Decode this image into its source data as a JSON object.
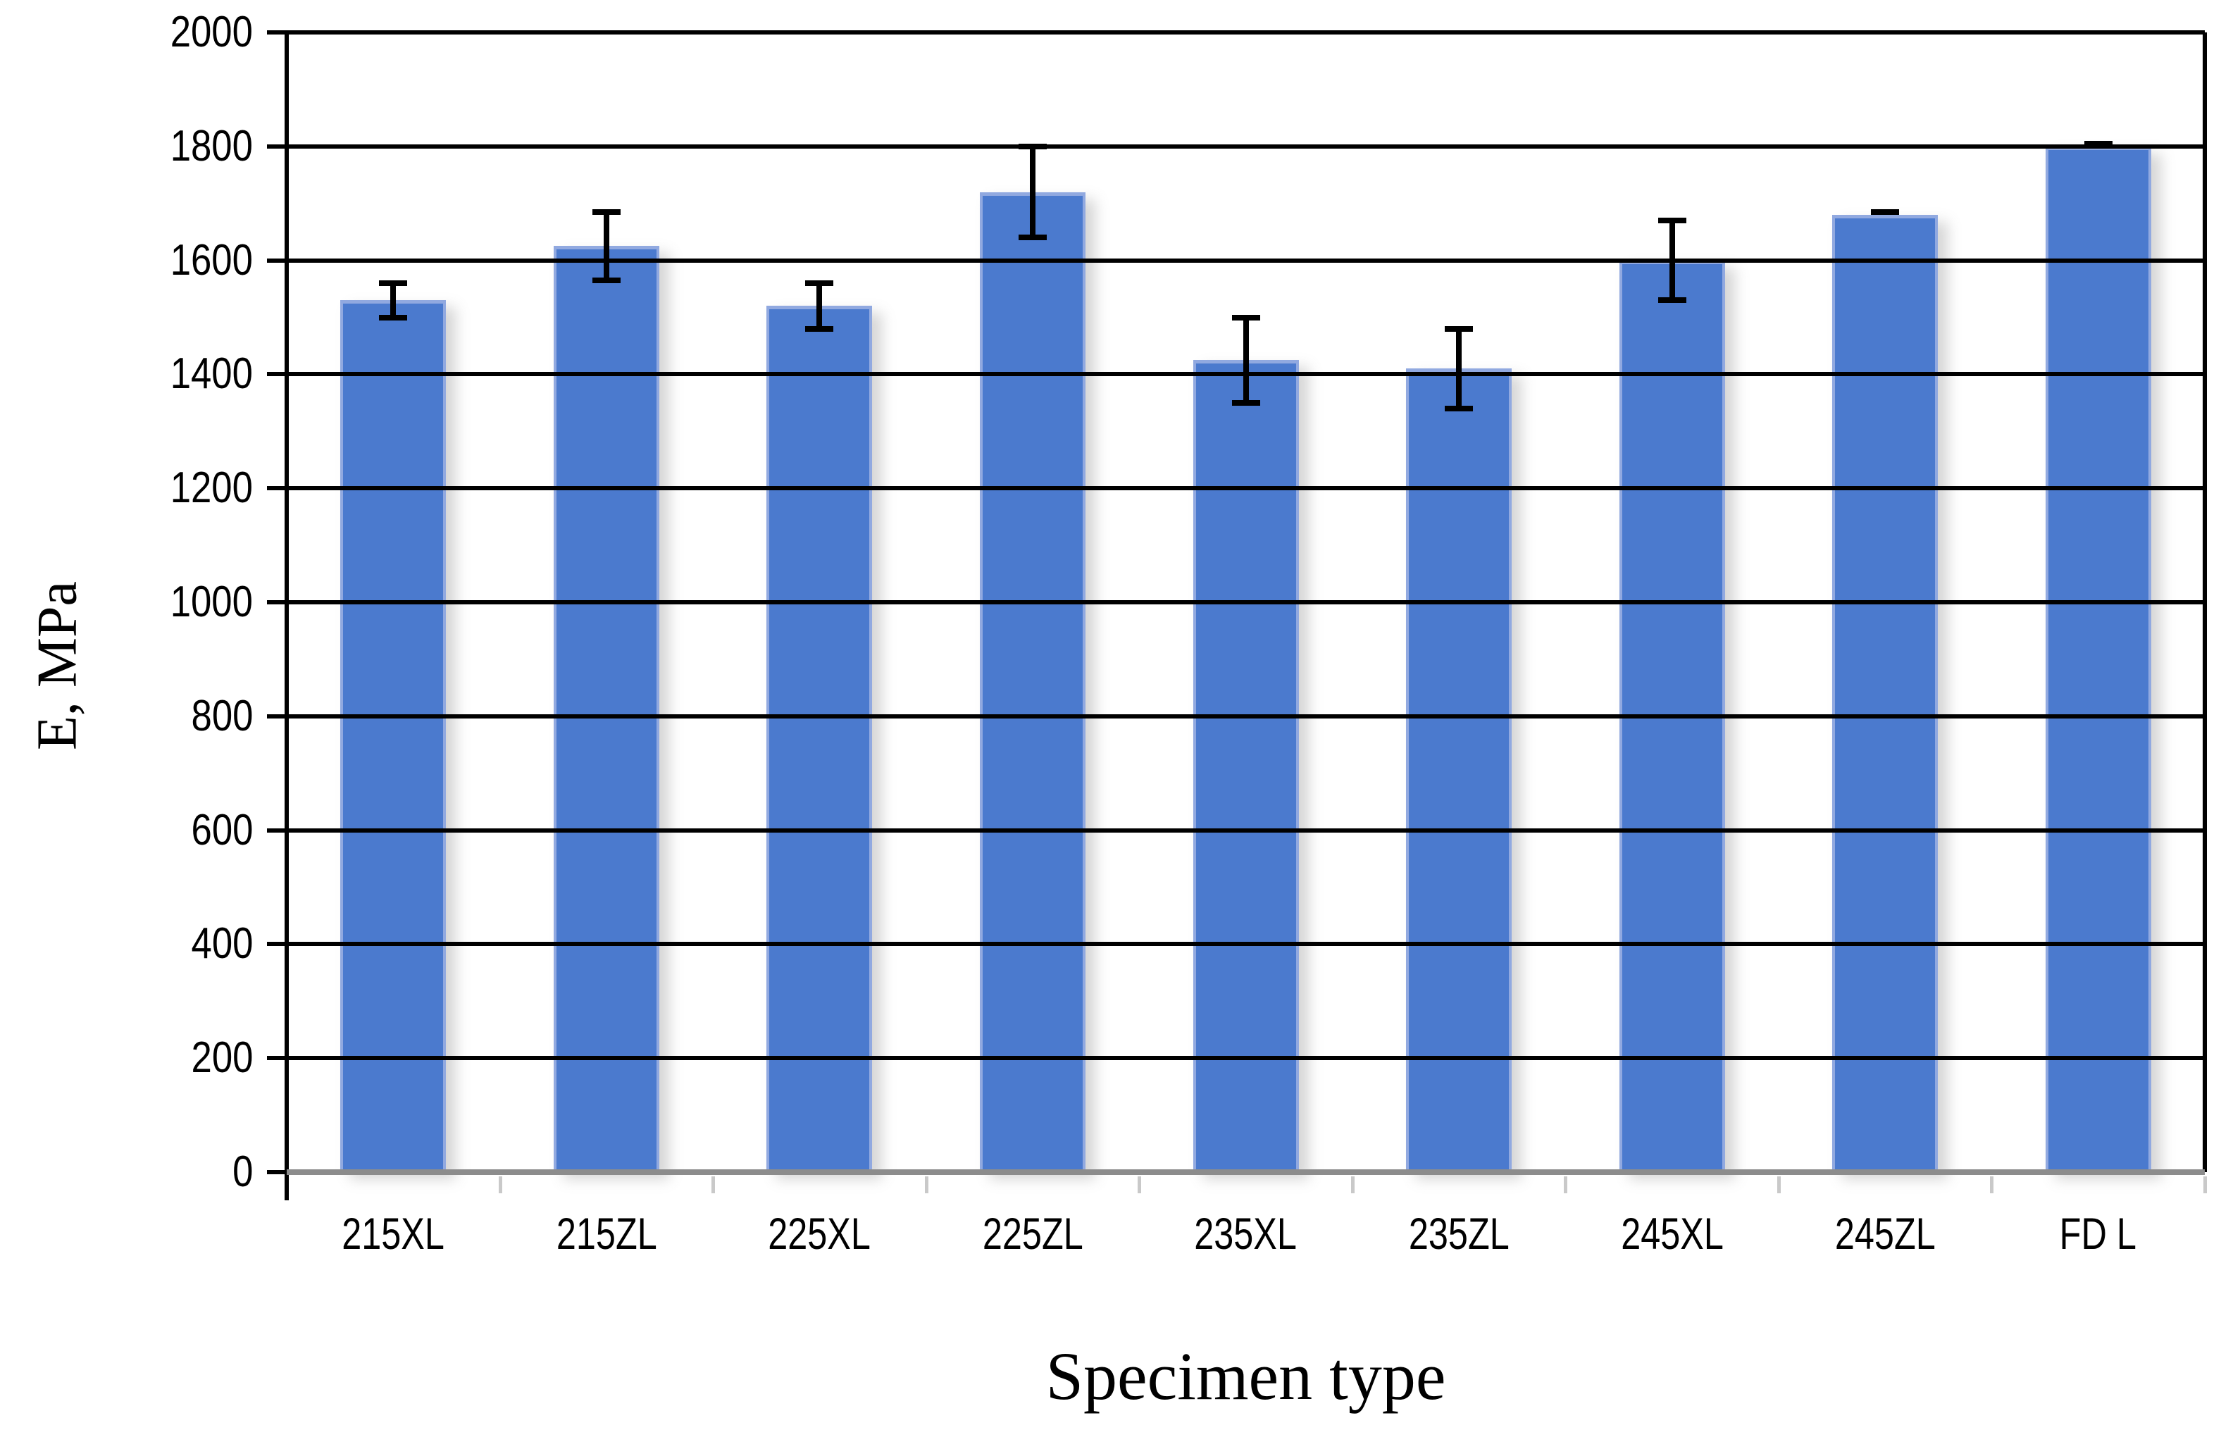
{
  "chart_data": {
    "type": "bar",
    "title": "",
    "xlabel": "Specimen type",
    "ylabel": "E, MPa",
    "categories": [
      "215XL",
      "215ZL",
      "225XL",
      "225ZL",
      "235XL",
      "235ZL",
      "245XL",
      "245ZL",
      "FD L"
    ],
    "values": [
      1530,
      1625,
      1520,
      1720,
      1425,
      1410,
      1600,
      1680,
      1800
    ],
    "error_bars_plus_minus": [
      30,
      60,
      40,
      80,
      75,
      70,
      70,
      5,
      5
    ],
    "ylim": [
      0,
      2000
    ],
    "ytick_step": 200,
    "ytick_labels": [
      "0",
      "200",
      "400",
      "600",
      "800",
      "1000",
      "1200",
      "1400",
      "1600",
      "1800",
      "2000"
    ],
    "grid": "horizontal-on-top-of-bars",
    "legend": "none",
    "colors": {
      "bar_fill": "#4b7ace",
      "bar_edge": "#91a9e0",
      "bar_shadow": "rgba(120,120,120,0.30)",
      "gridline": "#000000",
      "axis_line": "#000000",
      "baseline": "#8c8c8c",
      "minor_tick": "#c9c9c9",
      "error_bar": "#000000",
      "text": "#000000",
      "background": "#ffffff"
    }
  }
}
